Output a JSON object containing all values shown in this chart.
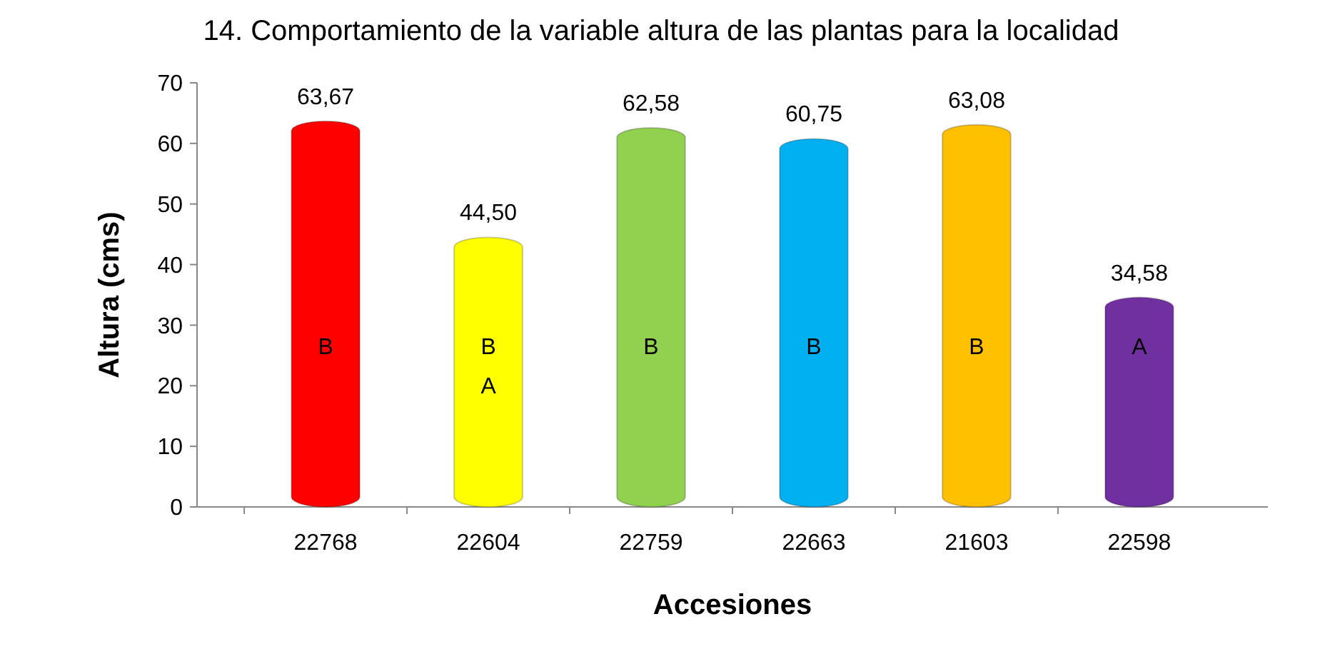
{
  "chart_data": {
    "type": "bar",
    "title": "14. Comportamiento de la variable altura de las plantas para la localidad",
    "xlabel": "Accesiones",
    "ylabel": "Altura (cms)",
    "categories": [
      "22768",
      "22604",
      "22759",
      "22663",
      "21603",
      "22598"
    ],
    "values": [
      63.67,
      44.5,
      62.58,
      60.75,
      63.08,
      34.58
    ],
    "colors": [
      "#ff0000",
      "#ffff00",
      "#92d050",
      "#00b0f0",
      "#ffc000",
      "#7030a0"
    ],
    "value_labels": [
      "63,67",
      "44,50",
      "62,58",
      "60,75",
      "63,08",
      "34,58"
    ],
    "ylim": [
      0,
      70
    ],
    "yticks": [
      0,
      10,
      20,
      30,
      40,
      50,
      60,
      70
    ],
    "grid": false,
    "annotations": [
      "B",
      "B\nA",
      "B",
      "B",
      "B",
      "A"
    ]
  }
}
